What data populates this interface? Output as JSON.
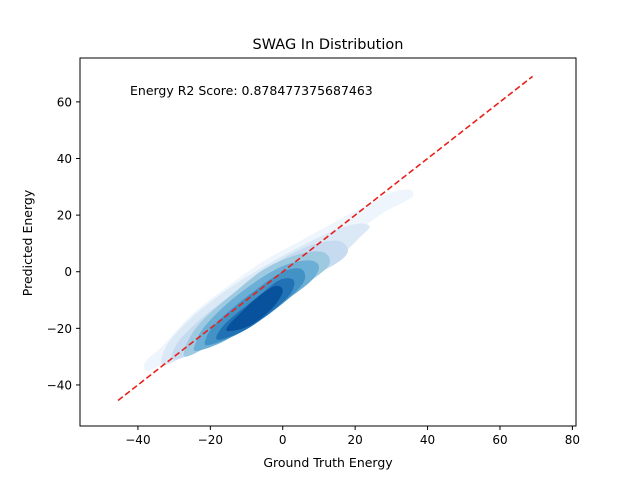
{
  "chart_data": {
    "type": "kde-contour",
    "title": "SWAG In Distribution",
    "xlabel": "Ground Truth Energy",
    "ylabel": "Predicted Energy",
    "annotation": "Energy R2 Score: 0.878477375687463",
    "xlim": [
      -56,
      81
    ],
    "ylim": [
      -54.5,
      75.5
    ],
    "xticks": [
      -40,
      -20,
      0,
      20,
      40,
      60,
      80
    ],
    "yticks": [
      -40,
      -20,
      0,
      20,
      40,
      60
    ],
    "grid": false,
    "reference_line": {
      "style": "dashed",
      "color": "#e8211c",
      "x": [
        -45.5,
        69
      ],
      "y": [
        -45.5,
        69
      ]
    },
    "density_levels": [
      {
        "level": 1,
        "color": "#eef5fc",
        "points": [
          [
            -37,
            -35
          ],
          [
            -30,
            -30
          ],
          [
            -20,
            -21
          ],
          [
            -10,
            -11
          ],
          [
            0,
            -1
          ],
          [
            10,
            7
          ],
          [
            20,
            14
          ],
          [
            28,
            21
          ],
          [
            34,
            25
          ],
          [
            36,
            27
          ],
          [
            35,
            29
          ],
          [
            30,
            28
          ],
          [
            24,
            24
          ],
          [
            15,
            18
          ],
          [
            5,
            11
          ],
          [
            -5,
            4
          ],
          [
            -15,
            -5
          ],
          [
            -25,
            -15
          ],
          [
            -33,
            -26
          ],
          [
            -38,
            -32
          ]
        ]
      },
      {
        "level": 2,
        "color": "#dbe9f6",
        "points": [
          [
            -33,
            -33
          ],
          [
            -25,
            -28
          ],
          [
            -15,
            -19
          ],
          [
            -5,
            -10
          ],
          [
            5,
            -1
          ],
          [
            15,
            5
          ],
          [
            22,
            13
          ],
          [
            24,
            16
          ],
          [
            21,
            17
          ],
          [
            15,
            15
          ],
          [
            5,
            9
          ],
          [
            -5,
            2
          ],
          [
            -15,
            -6
          ],
          [
            -25,
            -16
          ],
          [
            -32,
            -26
          ]
        ]
      },
      {
        "level": 3,
        "color": "#c6dbef",
        "points": [
          [
            -30,
            -31
          ],
          [
            -22,
            -27
          ],
          [
            -12,
            -19
          ],
          [
            -2,
            -10
          ],
          [
            8,
            -2
          ],
          [
            16,
            4
          ],
          [
            18,
            8
          ],
          [
            15,
            11
          ],
          [
            7,
            9
          ],
          [
            -2,
            3
          ],
          [
            -12,
            -6
          ],
          [
            -22,
            -16
          ],
          [
            -29,
            -25
          ]
        ]
      },
      {
        "level": 4,
        "color": "#9ecae1",
        "points": [
          [
            -27,
            -30
          ],
          [
            -20,
            -26
          ],
          [
            -10,
            -19
          ],
          [
            0,
            -10
          ],
          [
            9,
            -2
          ],
          [
            13,
            3
          ],
          [
            11,
            7
          ],
          [
            4,
            6
          ],
          [
            -5,
            1
          ],
          [
            -14,
            -8
          ],
          [
            -22,
            -17
          ],
          [
            -26,
            -24
          ]
        ]
      },
      {
        "level": 5,
        "color": "#6baed6",
        "points": [
          [
            -24,
            -28
          ],
          [
            -17,
            -25
          ],
          [
            -8,
            -18
          ],
          [
            1,
            -10
          ],
          [
            8,
            -3
          ],
          [
            10,
            2
          ],
          [
            7,
            4
          ],
          [
            0,
            2
          ],
          [
            -8,
            -4
          ],
          [
            -16,
            -12
          ],
          [
            -22,
            -20
          ],
          [
            -24,
            -25
          ]
        ]
      },
      {
        "level": 6,
        "color": "#4292c6",
        "points": [
          [
            -21,
            -26
          ],
          [
            -14,
            -23
          ],
          [
            -6,
            -17
          ],
          [
            2,
            -9
          ],
          [
            6,
            -3
          ],
          [
            5,
            1
          ],
          [
            0,
            0
          ],
          [
            -7,
            -6
          ],
          [
            -14,
            -13
          ],
          [
            -19,
            -19
          ],
          [
            -21,
            -23
          ]
        ]
      },
      {
        "level": 7,
        "color": "#2171b5",
        "points": [
          [
            -18,
            -24
          ],
          [
            -11,
            -21
          ],
          [
            -4,
            -15
          ],
          [
            2,
            -8
          ],
          [
            3,
            -3
          ],
          [
            -1,
            -3
          ],
          [
            -7,
            -9
          ],
          [
            -13,
            -15
          ],
          [
            -17,
            -20
          ]
        ]
      },
      {
        "level": 8,
        "color": "#08519c",
        "points": [
          [
            -15,
            -21
          ],
          [
            -9,
            -19
          ],
          [
            -3,
            -13
          ],
          [
            0,
            -7
          ],
          [
            -2,
            -5
          ],
          [
            -7,
            -9
          ],
          [
            -12,
            -15
          ],
          [
            -15,
            -19
          ]
        ]
      }
    ]
  }
}
